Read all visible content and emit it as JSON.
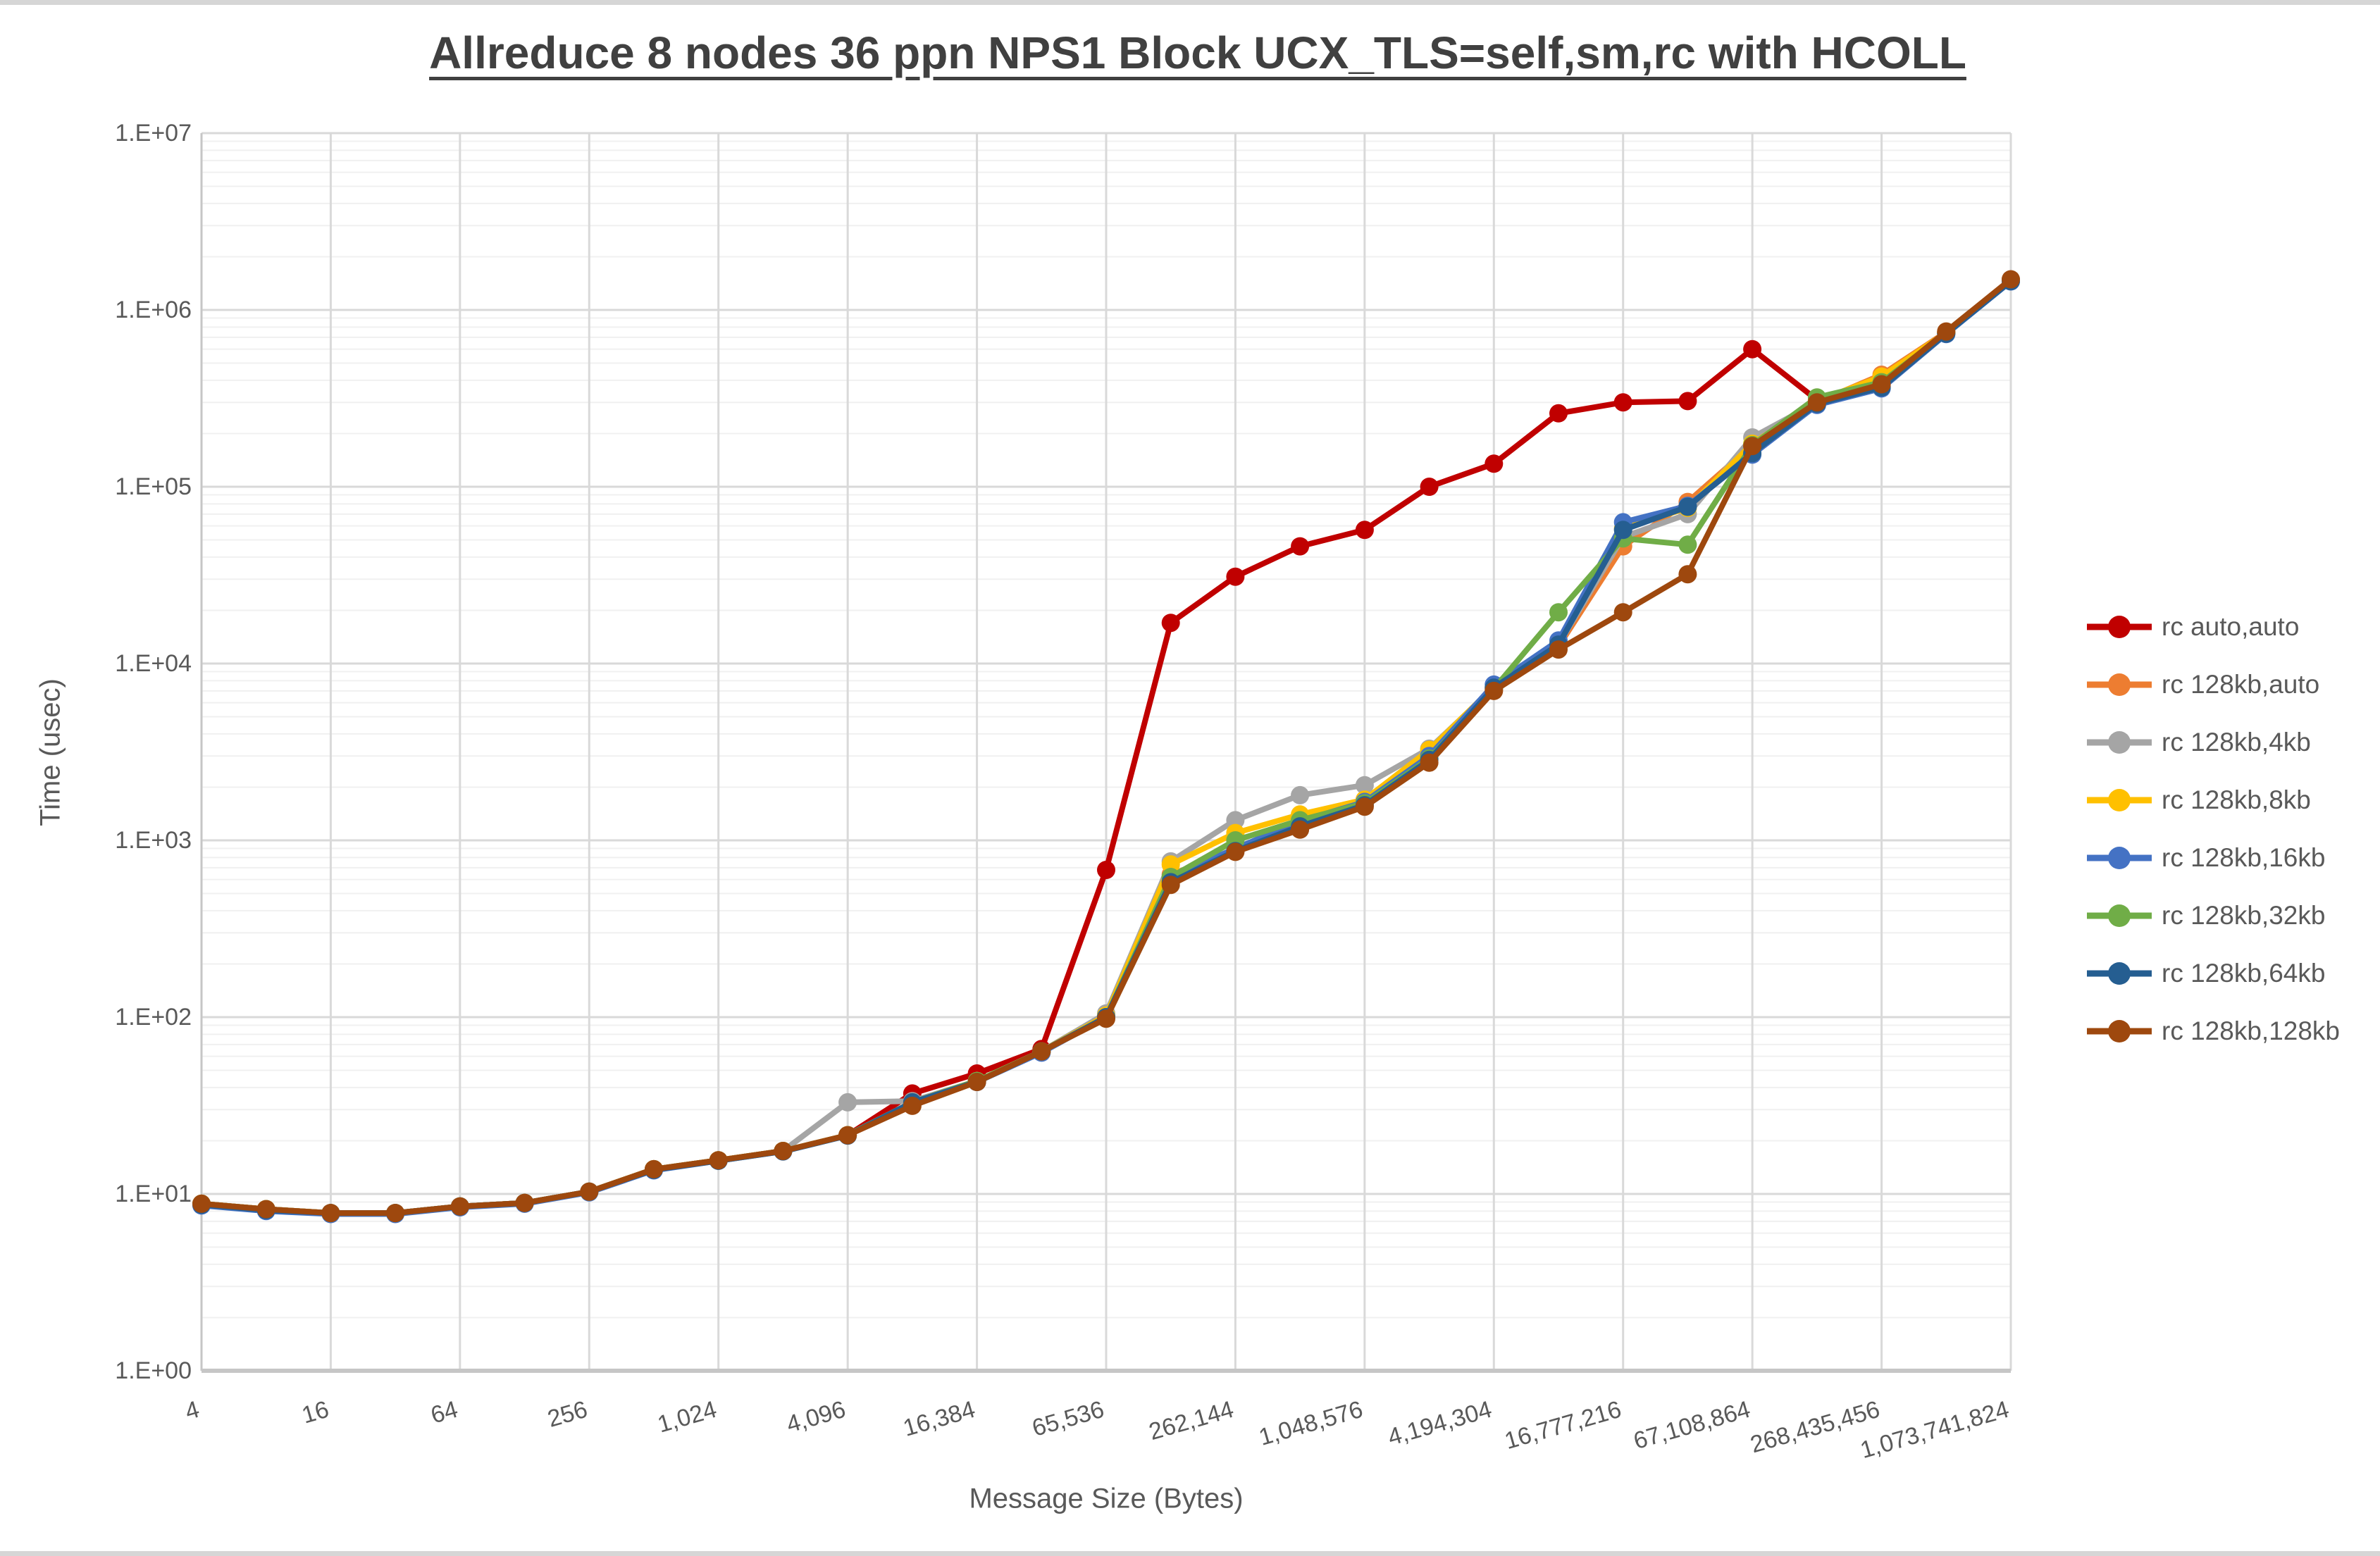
{
  "title": "Allreduce 8 nodes 36 ppn NPS1 Block UCX_TLS=self,sm,rc with HCOLL",
  "axes": {
    "y_title": "Time (usec)",
    "x_title": "Message Size (Bytes)",
    "y_tick_labels": [
      "1.E+00",
      "1.E+01",
      "1.E+02",
      "1.E+03",
      "1.E+04",
      "1.E+05",
      "1.E+06",
      "1.E+07"
    ],
    "x_tick_labels": [
      "4",
      "16",
      "64",
      "256",
      "1,024",
      "4,096",
      "16,384",
      "65,536",
      "262,144",
      "1,048,576",
      "4,194,304",
      "16,777,216",
      "67,108,864",
      "268,435,456",
      "1,073,741,824"
    ]
  },
  "chart_data": {
    "type": "line",
    "title": "Allreduce 8 nodes 36 ppn NPS1 Block UCX_TLS=self,sm,rc with HCOLL",
    "xlabel": "Message Size (Bytes)",
    "ylabel": "Time (usec)",
    "x_scale": "log2",
    "y_scale": "log10",
    "ylim": [
      1,
      10000000
    ],
    "xlim": [
      4,
      1073741824
    ],
    "grid": "major-and-minor-horizontal, major-vertical",
    "legend_position": "right",
    "x": [
      4,
      8,
      16,
      32,
      64,
      128,
      256,
      512,
      1024,
      2048,
      4096,
      8192,
      16384,
      32768,
      65536,
      131072,
      262144,
      524288,
      1048576,
      2097152,
      4194304,
      8388608,
      16777216,
      33554432,
      67108864,
      134217728,
      268435456,
      536870912,
      1073741824
    ],
    "x_tick_values": [
      4,
      16,
      64,
      256,
      1024,
      4096,
      16384,
      65536,
      262144,
      1048576,
      4194304,
      16777216,
      67108864,
      268435456,
      1073741824
    ],
    "series": [
      {
        "name": "rc auto,auto",
        "color": "#C00000",
        "values": [
          8.8,
          8.2,
          7.8,
          7.8,
          8.5,
          8.9,
          10.3,
          13.8,
          15.5,
          17.5,
          21.5,
          37,
          48,
          66,
          680,
          17000,
          31000,
          46000,
          57000,
          100000,
          135000,
          260000,
          300000,
          305000,
          600000,
          310000,
          370000,
          740000,
          1480000
        ]
      },
      {
        "name": "rc 128kb,auto",
        "color": "#ED7D31",
        "values": [
          8.8,
          8.2,
          7.8,
          7.8,
          8.5,
          8.9,
          10.3,
          13.8,
          15.5,
          17.5,
          21.5,
          33,
          43.5,
          64,
          100,
          640,
          880,
          1250,
          1600,
          2900,
          7100,
          12500,
          46000,
          82000,
          172000,
          300000,
          430000,
          750000,
          1470000
        ]
      },
      {
        "name": "rc 128kb,4kb",
        "color": "#A5A5A5",
        "values": [
          8.8,
          8.2,
          7.8,
          7.8,
          8.5,
          8.9,
          10.3,
          13.8,
          15.5,
          17.5,
          33,
          33.5,
          43.5,
          64,
          105,
          760,
          1300,
          1800,
          2050,
          3300,
          7300,
          12800,
          52000,
          70000,
          190000,
          300000,
          400000,
          740000,
          1460000
        ]
      },
      {
        "name": "rc 128kb,8kb",
        "color": "#FFC000",
        "values": [
          8.8,
          8.2,
          7.8,
          7.8,
          8.5,
          8.9,
          10.3,
          13.8,
          15.5,
          17.5,
          21.5,
          33,
          43.5,
          64,
          102,
          730,
          1100,
          1400,
          1700,
          3250,
          7400,
          13000,
          58000,
          76000,
          175000,
          305000,
          420000,
          745000,
          1480000
        ]
      },
      {
        "name": "rc 128kb,16kb",
        "color": "#4472C4",
        "values": [
          8.6,
          8.0,
          7.7,
          7.7,
          8.4,
          8.8,
          10.2,
          13.6,
          15.4,
          17.4,
          21.4,
          33,
          43,
          63,
          100,
          620,
          900,
          1280,
          1650,
          3000,
          7600,
          13500,
          63000,
          78000,
          152000,
          290000,
          360000,
          730000,
          1450000
        ]
      },
      {
        "name": "rc 128kb,32kb",
        "color": "#70AD47",
        "values": [
          8.8,
          8.2,
          7.8,
          7.8,
          8.5,
          8.9,
          10.3,
          13.8,
          15.5,
          17.5,
          21.5,
          33,
          43.5,
          64,
          100,
          620,
          1000,
          1300,
          1620,
          2900,
          7200,
          19500,
          51000,
          47000,
          172000,
          320000,
          390000,
          740000,
          1470000
        ]
      },
      {
        "name": "rc 128kb,64kb",
        "color": "#255E91",
        "values": [
          8.7,
          8.1,
          7.8,
          7.8,
          8.5,
          8.9,
          10.3,
          13.7,
          15.4,
          17.4,
          21.4,
          33,
          43,
          64,
          100,
          580,
          870,
          1200,
          1580,
          2850,
          7300,
          12800,
          57000,
          77000,
          155000,
          295000,
          365000,
          735000,
          1455000
        ]
      },
      {
        "name": "rc 128kb,128kb",
        "color": "#9E480E",
        "values": [
          8.8,
          8.2,
          7.8,
          7.8,
          8.5,
          8.9,
          10.3,
          13.8,
          15.5,
          17.5,
          21.5,
          31.5,
          43,
          64,
          98,
          560,
          860,
          1150,
          1550,
          2750,
          7000,
          12000,
          19500,
          32000,
          170000,
          300000,
          380000,
          755000,
          1490000
        ]
      }
    ]
  },
  "style": {
    "major_grid_color": "#d9d9d9",
    "minor_grid_color": "#f0f0f0",
    "axis_line_color": "#c6c6c6",
    "text_color": "#595959",
    "title_color": "#404040"
  }
}
